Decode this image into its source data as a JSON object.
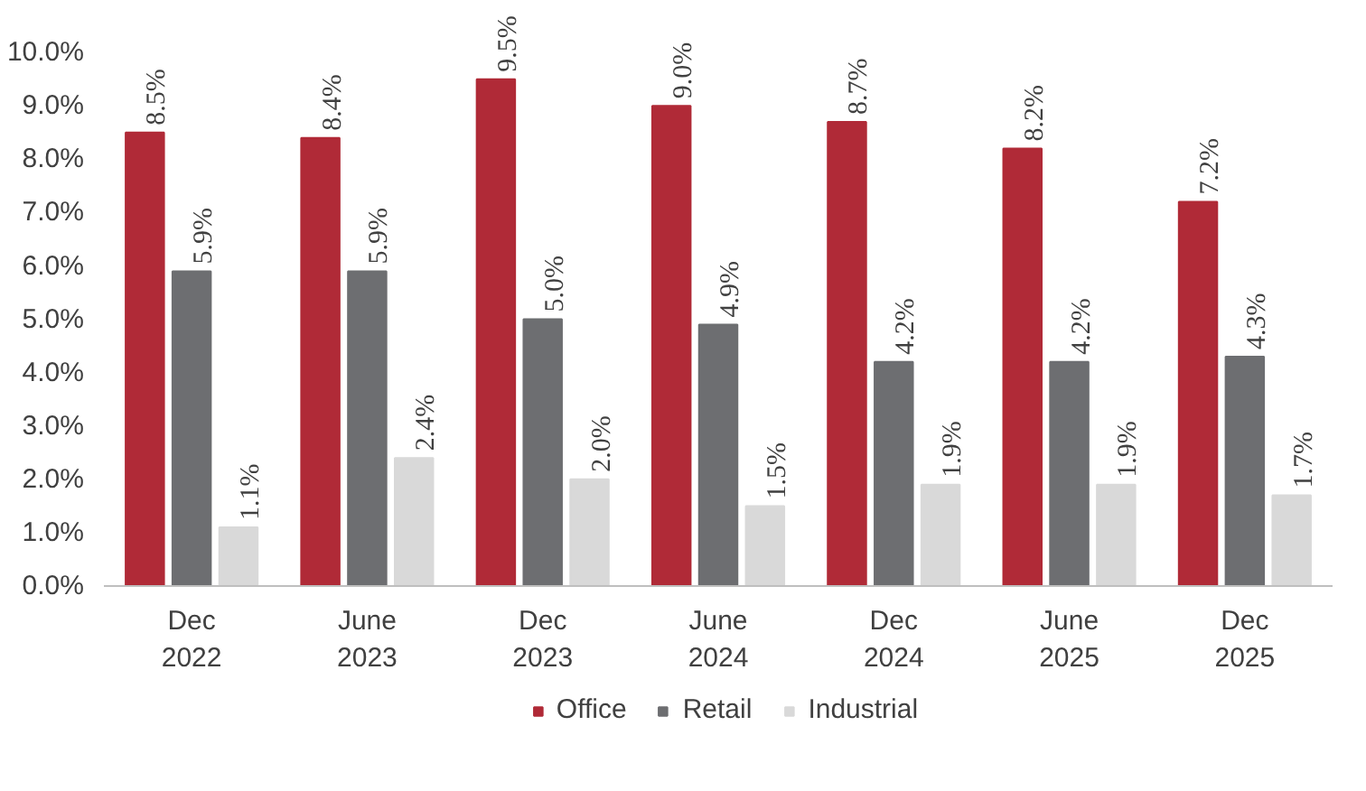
{
  "chart_data": {
    "type": "bar",
    "categories": [
      "Dec\n2022",
      "June\n2023",
      "Dec\n2023",
      "June\n2024",
      "Dec\n2024",
      "June\n2025",
      "Dec\n2025"
    ],
    "series": [
      {
        "name": "Office",
        "color": "#b02a37",
        "values": [
          8.5,
          8.4,
          9.5,
          9.0,
          8.7,
          8.2,
          7.2
        ],
        "value_labels": [
          "8.5%",
          "8.4%",
          "9.5%",
          "9.0%",
          "8.7%",
          "8.2%",
          "7.2%"
        ]
      },
      {
        "name": "Retail",
        "color": "#6d6e71",
        "values": [
          5.9,
          5.9,
          5.0,
          4.9,
          4.2,
          4.2,
          4.3
        ],
        "value_labels": [
          "5.9%",
          "5.9%",
          "5.0%",
          "4.9%",
          "4.2%",
          "4.2%",
          "4.3%"
        ]
      },
      {
        "name": "Industrial",
        "color": "#d9d9d9",
        "values": [
          1.1,
          2.4,
          2.0,
          1.5,
          1.9,
          1.9,
          1.7
        ],
        "value_labels": [
          "1.1%",
          "2.4%",
          "2.0%",
          "1.5%",
          "1.9%",
          "1.9%",
          "1.7%"
        ]
      }
    ],
    "ylim": [
      0,
      10
    ],
    "yticks": [
      {
        "value": 0,
        "label": "0.0%"
      },
      {
        "value": 1,
        "label": "1.0%"
      },
      {
        "value": 2,
        "label": "2.0%"
      },
      {
        "value": 3,
        "label": "3.0%"
      },
      {
        "value": 4,
        "label": "4.0%"
      },
      {
        "value": 5,
        "label": "5.0%"
      },
      {
        "value": 6,
        "label": "6.0%"
      },
      {
        "value": 7,
        "label": "7.0%"
      },
      {
        "value": 8,
        "label": "8.0%"
      },
      {
        "value": 9,
        "label": "9.0%"
      },
      {
        "value": 10,
        "label": "10.0%"
      }
    ],
    "grid": false,
    "legend": "bottom"
  }
}
